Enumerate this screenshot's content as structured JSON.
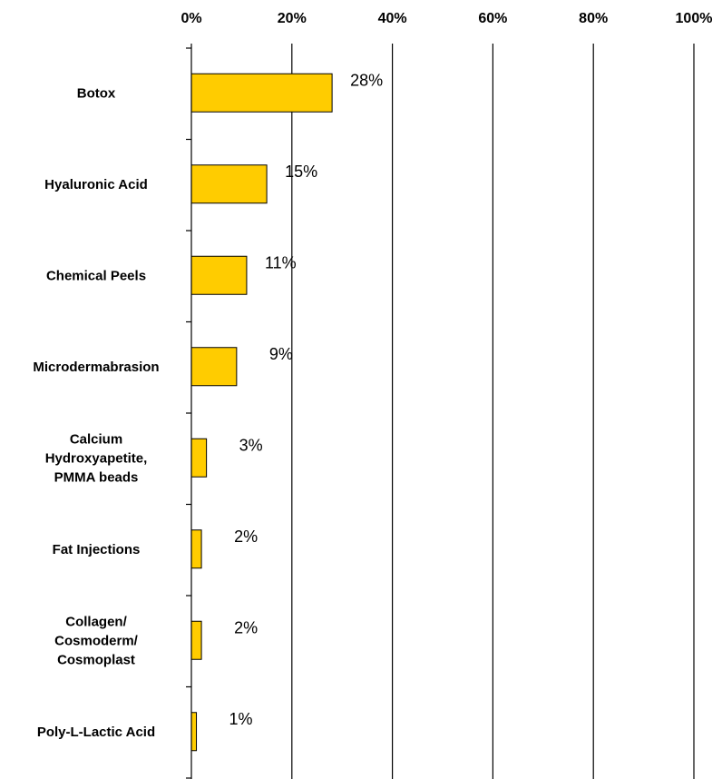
{
  "chart_data": {
    "type": "bar",
    "orientation": "horizontal",
    "categories": [
      "Botox",
      "Hyaluronic Acid",
      "Chemical Peels",
      "Microdermabrasion",
      "Calcium Hydroxyapetite, PMMA beads",
      "Fat Injections",
      "Collagen/ Cosmoderm/ Cosmoplast",
      "Poly-L-Lactic Acid"
    ],
    "category_label_lines": [
      [
        "Botox"
      ],
      [
        "Hyaluronic Acid"
      ],
      [
        "Chemical Peels"
      ],
      [
        "Microdermabrasion"
      ],
      [
        "Calcium",
        "Hydroxyapetite,",
        "PMMA beads"
      ],
      [
        "Fat Injections"
      ],
      [
        "Collagen/",
        "Cosmoderm/",
        "Cosmoplast"
      ],
      [
        "Poly-L-Lactic Acid"
      ]
    ],
    "values": [
      28,
      15,
      11,
      9,
      3,
      2,
      2,
      1
    ],
    "value_labels": [
      "28%",
      "15%",
      "11%",
      "9%",
      "3%",
      "2%",
      "2%",
      "1%"
    ],
    "xlim": [
      0,
      100
    ],
    "x_ticks": [
      0,
      20,
      40,
      60,
      80,
      100
    ],
    "x_tick_labels": [
      "0%",
      "20%",
      "40%",
      "60%",
      "80%",
      "100%"
    ],
    "x_axis_position": "top",
    "grid": true,
    "legend": "none",
    "bar_color": "#FFCC00",
    "bar_edge_color": "#000000",
    "title": "",
    "xlabel": "",
    "ylabel": ""
  }
}
